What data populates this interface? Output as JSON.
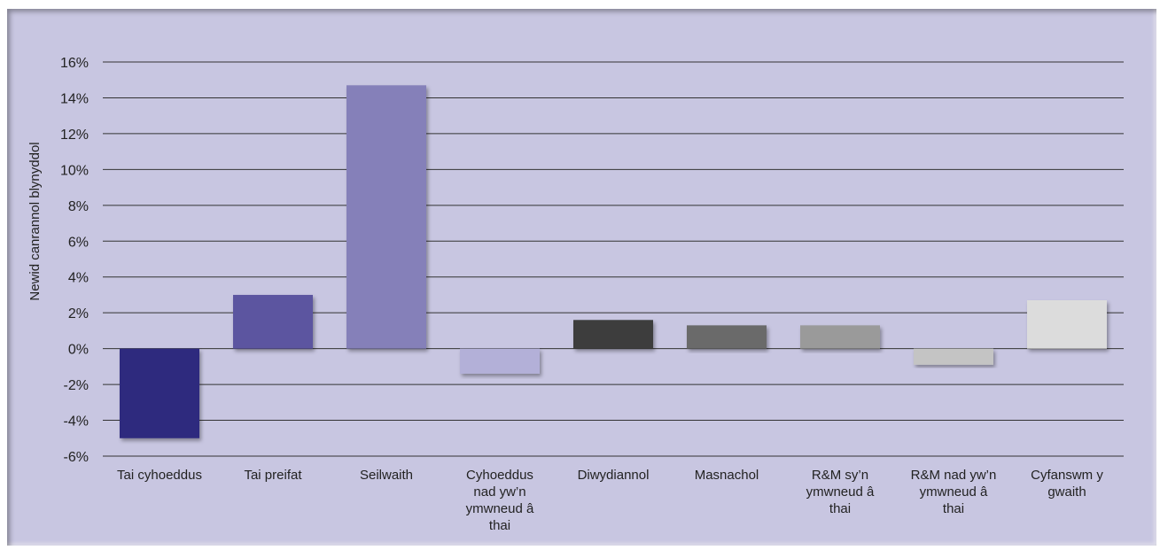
{
  "chart_data": {
    "type": "bar",
    "ylabel": "Newid canrannol blynyddol",
    "ylim": [
      -6,
      16
    ],
    "yticks": [
      -6,
      -4,
      -2,
      0,
      2,
      4,
      6,
      8,
      10,
      12,
      14,
      16
    ],
    "ytick_labels": [
      "-6%",
      "-4%",
      "-2%",
      "0%",
      "2%",
      "4%",
      "6%",
      "8%",
      "10%",
      "12%",
      "14%",
      "16%"
    ],
    "categories": [
      "Tai cyhoeddus",
      "Tai preifat",
      "Seilwaith",
      "Cyhoeddus nad yw'n ymwneud â thai",
      "Diwydiannol",
      "Masnachol",
      "R&M sy'n ymwneud â thai",
      "R&M nad yw'n ymwneud â thai",
      "Cyfanswm y gwaith"
    ],
    "category_lines": [
      [
        "Tai cyhoeddus"
      ],
      [
        "Tai preifat"
      ],
      [
        "Seilwaith"
      ],
      [
        "Cyhoeddus",
        "nad yw’n",
        "ymwneud â",
        "thai"
      ],
      [
        "Diwydiannol"
      ],
      [
        "Masnachol"
      ],
      [
        "R&M sy’n",
        "ymwneud â",
        "thai"
      ],
      [
        "R&M nad yw’n",
        "ymwneud â",
        "thai"
      ],
      [
        "Cyfanswm y",
        "gwaith"
      ]
    ],
    "values": [
      -5.0,
      3.0,
      14.7,
      -1.4,
      1.6,
      1.3,
      1.3,
      -0.9,
      2.7
    ],
    "bar_colors": [
      "#2e2a7e",
      "#5b55a0",
      "#8580b9",
      "#b3b0d8",
      "#3e3e3e",
      "#6a6a6a",
      "#9a9a9a",
      "#c4c4c4",
      "#dcdcdc"
    ],
    "grid": true,
    "legend": "none"
  }
}
